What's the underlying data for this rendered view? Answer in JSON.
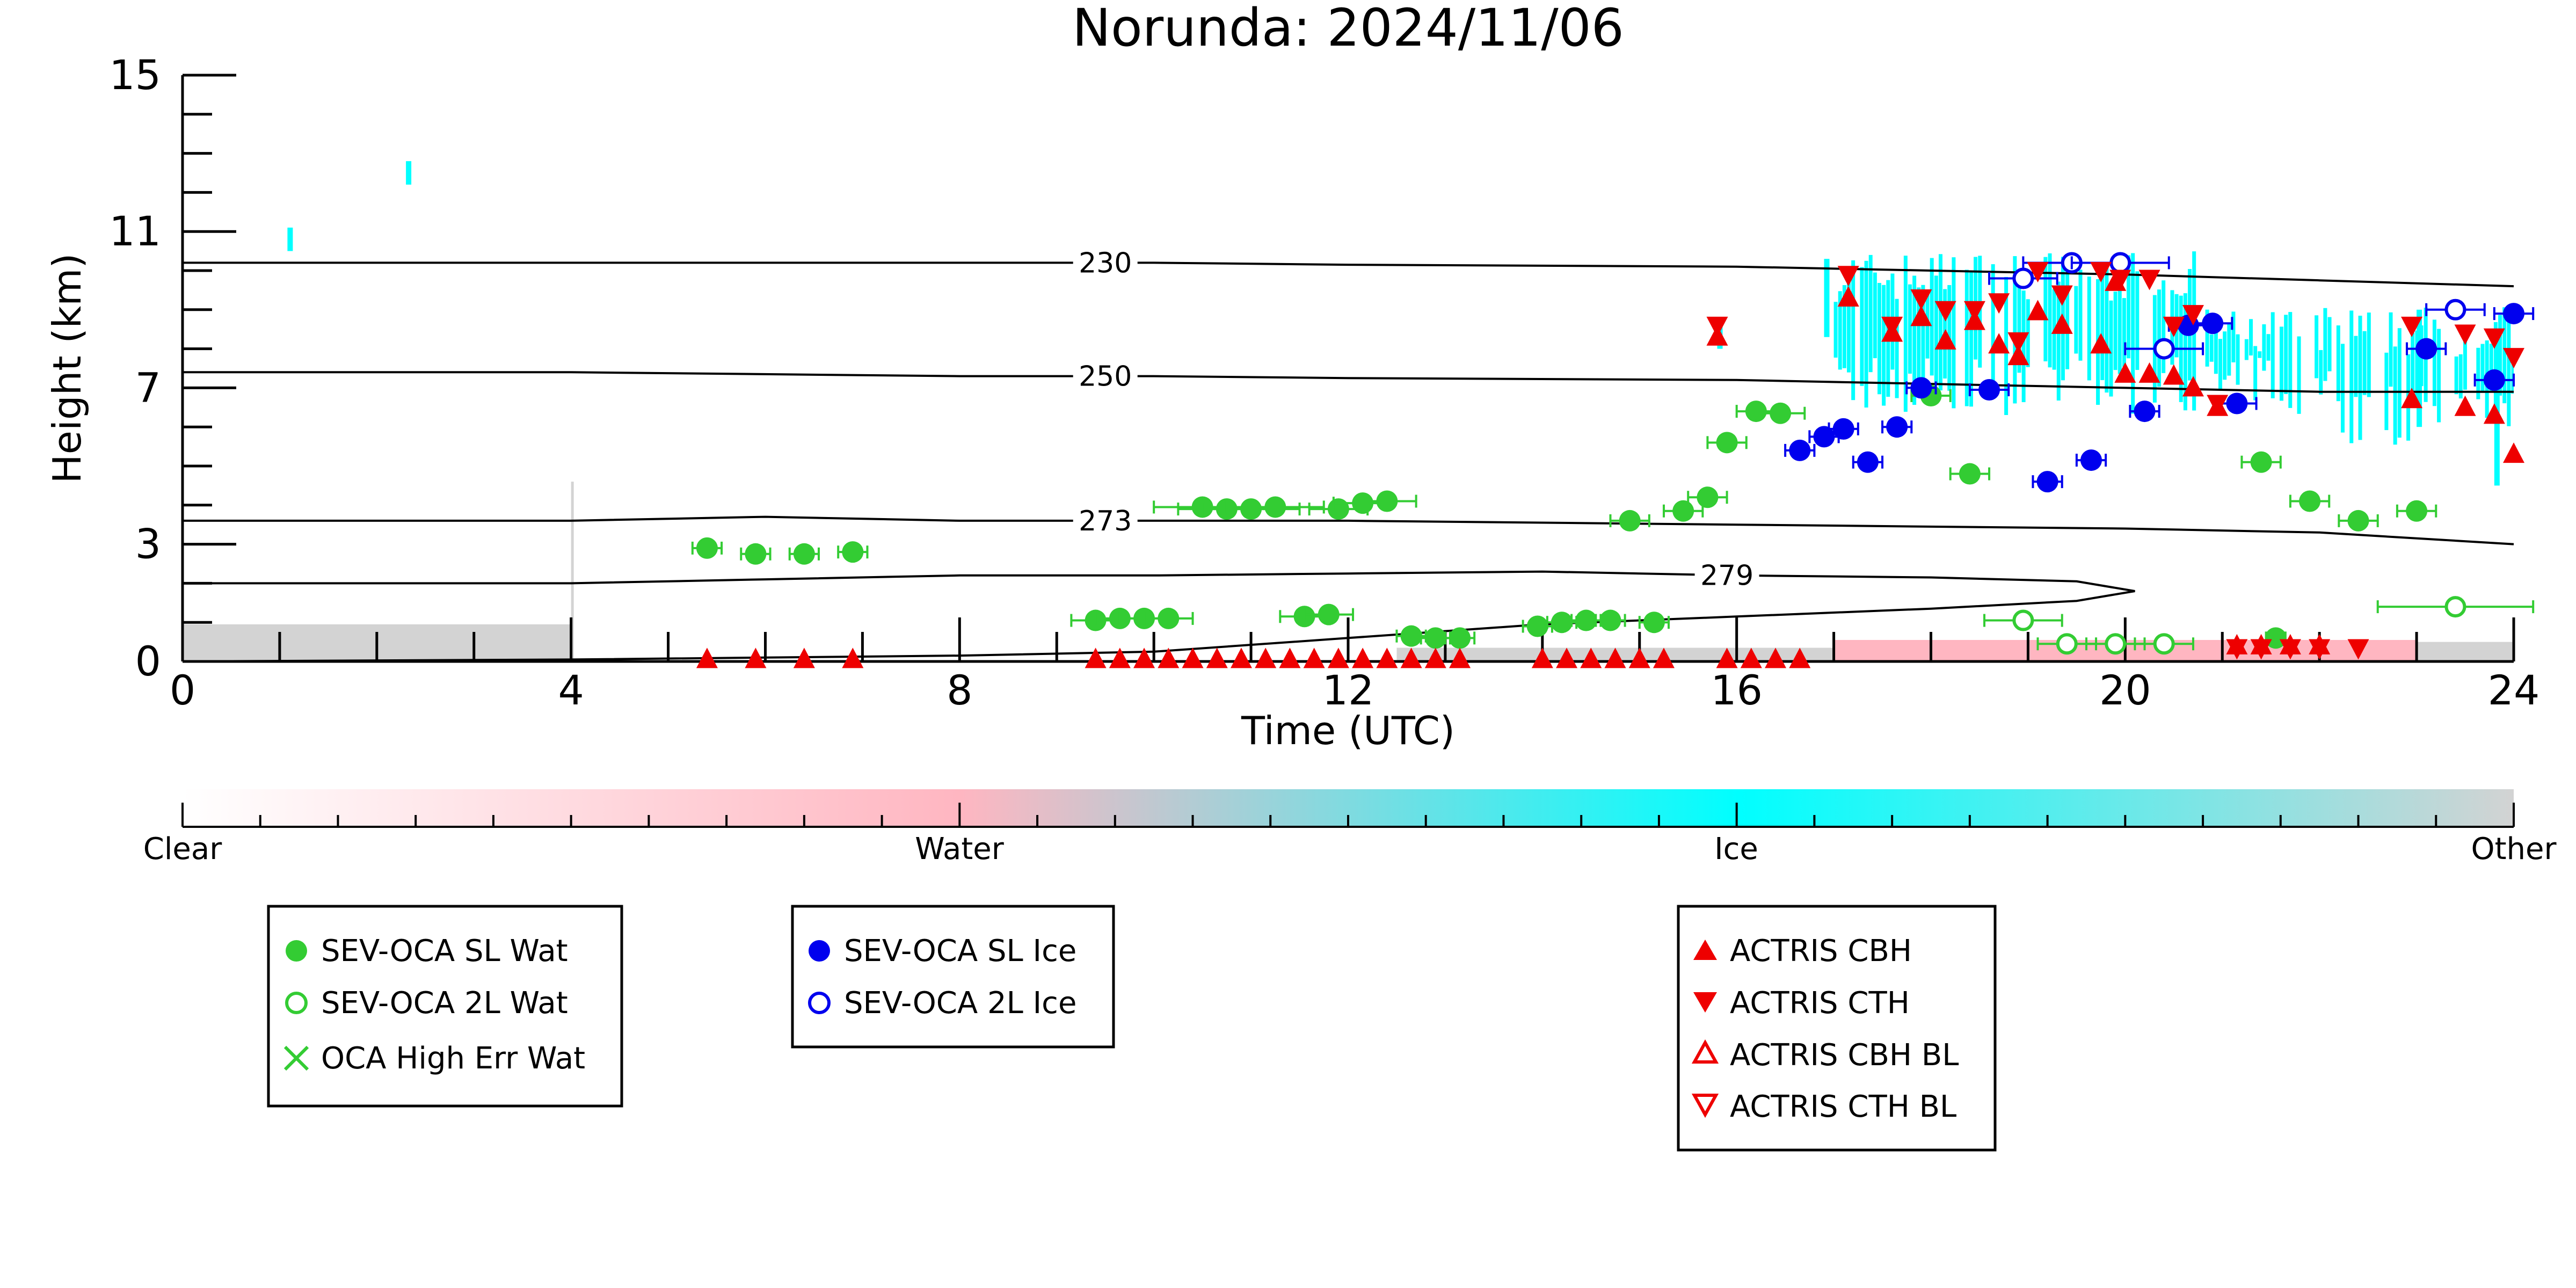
{
  "chart_data": {
    "type": "scatter",
    "title": "Norunda: 2024/11/06",
    "xlabel": "Time (UTC)",
    "ylabel": "Height (km)",
    "xlim": [
      0,
      24
    ],
    "ylim": [
      0,
      15
    ],
    "x_ticks": [
      "0",
      "4",
      "8",
      "12",
      "16",
      "20",
      "24"
    ],
    "y_ticks": [
      "0",
      "3",
      "7",
      "11",
      "15"
    ],
    "colorbar": {
      "labels": [
        "Clear",
        "Water",
        "Ice",
        "Other"
      ],
      "colors": {
        "clear": "#ffffff",
        "water": "#ffb6c1",
        "ice": "#00ffff",
        "other": "#d3d3d3"
      }
    },
    "temperature_contours": [
      {
        "label": "230",
        "label_x": 9.5,
        "points": [
          [
            0,
            10.2
          ],
          [
            4,
            10.2
          ],
          [
            8,
            10.2
          ],
          [
            10,
            10.2
          ],
          [
            12,
            10.15
          ],
          [
            16,
            10.1
          ],
          [
            18,
            10.0
          ],
          [
            20,
            9.9
          ],
          [
            22,
            9.75
          ],
          [
            24,
            9.6
          ]
        ]
      },
      {
        "label": "250",
        "label_x": 9.5,
        "points": [
          [
            0,
            7.4
          ],
          [
            4,
            7.4
          ],
          [
            8,
            7.3
          ],
          [
            10,
            7.3
          ],
          [
            12,
            7.25
          ],
          [
            16,
            7.2
          ],
          [
            20,
            7.0
          ],
          [
            22,
            6.9
          ],
          [
            24,
            6.9
          ]
        ]
      },
      {
        "label": "273",
        "label_x": 9.5,
        "points": [
          [
            0,
            3.6
          ],
          [
            3,
            3.6
          ],
          [
            4,
            3.6
          ],
          [
            6,
            3.7
          ],
          [
            8,
            3.6
          ],
          [
            10,
            3.6
          ],
          [
            12,
            3.6
          ],
          [
            16,
            3.5
          ],
          [
            20,
            3.4
          ],
          [
            22,
            3.3
          ],
          [
            24,
            3.0
          ]
        ]
      },
      {
        "label": "279",
        "label_x": 15.9,
        "points": [
          [
            0,
            2.0
          ],
          [
            2,
            2.0
          ],
          [
            4,
            2.0
          ],
          [
            6,
            2.1
          ],
          [
            8,
            2.2
          ],
          [
            10,
            2.2
          ],
          [
            12,
            2.25
          ],
          [
            14,
            2.3
          ],
          [
            16,
            2.2
          ],
          [
            18,
            2.15
          ],
          [
            19.5,
            2.05
          ],
          [
            20.1,
            1.8
          ],
          [
            19.5,
            1.55
          ],
          [
            18,
            1.35
          ],
          [
            16,
            1.15
          ],
          [
            14,
            0.95
          ],
          [
            12,
            0.6
          ],
          [
            10,
            0.25
          ],
          [
            8,
            0.15
          ],
          [
            4,
            0.05
          ],
          [
            0,
            0.0
          ]
        ]
      }
    ],
    "series": [
      {
        "name": "SEV-OCA SL Wat",
        "color": "#33cc33",
        "marker": "filled-circle",
        "points": [
          [
            5.4,
            2.9,
            0.15
          ],
          [
            5.9,
            2.75,
            0.15
          ],
          [
            6.4,
            2.75,
            0.15
          ],
          [
            6.9,
            2.8,
            0.15
          ],
          [
            9.4,
            1.05,
            0.25
          ],
          [
            9.65,
            1.1,
            0.25
          ],
          [
            9.9,
            1.1,
            0.25
          ],
          [
            10.15,
            1.1,
            0.25
          ],
          [
            10.5,
            3.95,
            0.5
          ],
          [
            10.75,
            3.9,
            0.5
          ],
          [
            11.0,
            3.9,
            0.5
          ],
          [
            11.25,
            3.95,
            0.5
          ],
          [
            11.55,
            1.15,
            0.25
          ],
          [
            11.8,
            1.2,
            0.25
          ],
          [
            11.9,
            3.9,
            0.3
          ],
          [
            12.15,
            4.05,
            0.3
          ],
          [
            12.4,
            4.1,
            0.3
          ],
          [
            12.65,
            0.65,
            0.15
          ],
          [
            12.9,
            0.6,
            0.15
          ],
          [
            13.15,
            0.6,
            0.15
          ],
          [
            13.95,
            0.9,
            0.15
          ],
          [
            14.2,
            1.0,
            0.15
          ],
          [
            14.45,
            1.05,
            0.15
          ],
          [
            14.7,
            1.05,
            0.15
          ],
          [
            15.15,
            1.0,
            0.15
          ],
          [
            14.9,
            3.6,
            0.2
          ],
          [
            15.45,
            3.85,
            0.2
          ],
          [
            15.7,
            4.2,
            0.2
          ],
          [
            15.9,
            5.6,
            0.2
          ],
          [
            16.2,
            6.4,
            0.2
          ],
          [
            16.45,
            6.35,
            0.25
          ],
          [
            18.0,
            6.8,
            0.2
          ],
          [
            18.4,
            4.8,
            0.2
          ],
          [
            21.4,
            5.1,
            0.2
          ],
          [
            21.55,
            0.6,
            0.1
          ],
          [
            21.9,
            4.1,
            0.2
          ],
          [
            22.4,
            3.6,
            0.2
          ],
          [
            23.0,
            3.85,
            0.2
          ]
        ]
      },
      {
        "name": "SEV-OCA 2L Wat",
        "color": "#33cc33",
        "marker": "open-circle",
        "points": [
          [
            18.95,
            1.05,
            0.4
          ],
          [
            19.4,
            0.45,
            0.3
          ],
          [
            19.9,
            0.45,
            0.3
          ],
          [
            20.4,
            0.45,
            0.3
          ],
          [
            23.4,
            1.4,
            0.8
          ]
        ]
      },
      {
        "name": "OCA High Err Wat",
        "color": "#33cc33",
        "marker": "x",
        "points": []
      },
      {
        "name": "SEV-OCA SL Ice",
        "color": "#0000ee",
        "marker": "filled-circle",
        "points": [
          [
            16.65,
            5.4,
            0.15
          ],
          [
            16.9,
            5.75,
            0.15
          ],
          [
            17.1,
            5.95,
            0.15
          ],
          [
            17.35,
            5.1,
            0.15
          ],
          [
            17.65,
            6.0,
            0.15
          ],
          [
            17.9,
            7.0,
            0.15
          ],
          [
            18.6,
            6.95,
            0.2
          ],
          [
            19.2,
            4.6,
            0.15
          ],
          [
            19.65,
            5.15,
            0.15
          ],
          [
            20.2,
            6.4,
            0.15
          ],
          [
            20.65,
            8.6,
            0.2
          ],
          [
            20.9,
            8.65,
            0.2
          ],
          [
            21.15,
            6.6,
            0.2
          ],
          [
            23.1,
            8.0,
            0.2
          ],
          [
            23.8,
            7.2,
            0.2
          ],
          [
            24.0,
            8.9,
            0.2
          ]
        ]
      },
      {
        "name": "SEV-OCA 2L Ice",
        "color": "#0000ee",
        "marker": "open-circle",
        "points": [
          [
            18.95,
            9.8,
            0.35
          ],
          [
            19.45,
            10.2,
            0.5
          ],
          [
            19.95,
            10.2,
            0.5
          ],
          [
            20.4,
            8.0,
            0.4
          ],
          [
            23.4,
            9.0,
            0.3
          ]
        ]
      },
      {
        "name": "ACTRIS CBH",
        "color": "#ee0000",
        "marker": "filled-triangle-up",
        "points": [
          [
            15.8,
            8.3
          ],
          [
            17.15,
            9.3
          ],
          [
            17.6,
            8.4
          ],
          [
            17.9,
            8.8
          ],
          [
            18.15,
            8.2
          ],
          [
            18.45,
            8.7
          ],
          [
            18.7,
            8.1
          ],
          [
            18.9,
            7.8
          ],
          [
            19.1,
            8.95
          ],
          [
            19.35,
            8.6
          ],
          [
            19.75,
            8.1
          ],
          [
            19.9,
            9.7
          ],
          [
            20.0,
            7.35
          ],
          [
            20.25,
            7.35
          ],
          [
            20.5,
            7.3
          ],
          [
            20.7,
            7.0
          ],
          [
            20.95,
            6.5
          ],
          [
            22.95,
            6.7
          ],
          [
            23.5,
            6.5
          ],
          [
            23.8,
            6.3
          ],
          [
            24.0,
            5.3
          ],
          [
            21.15,
            0.4
          ],
          [
            21.4,
            0.4
          ],
          [
            21.7,
            0.4
          ],
          [
            22.0,
            0.4
          ],
          [
            5.4,
            0.05
          ],
          [
            5.9,
            0.05
          ],
          [
            6.4,
            0.05
          ],
          [
            6.9,
            0.05
          ],
          [
            9.4,
            0.05
          ],
          [
            9.65,
            0.05
          ],
          [
            9.9,
            0.05
          ],
          [
            10.15,
            0.05
          ],
          [
            10.4,
            0.05
          ],
          [
            10.65,
            0.05
          ],
          [
            10.9,
            0.05
          ],
          [
            11.15,
            0.05
          ],
          [
            11.4,
            0.05
          ],
          [
            11.65,
            0.05
          ],
          [
            11.9,
            0.05
          ],
          [
            12.15,
            0.05
          ],
          [
            12.4,
            0.05
          ],
          [
            12.65,
            0.05
          ],
          [
            12.9,
            0.05
          ],
          [
            13.15,
            0.05
          ],
          [
            14.0,
            0.05
          ],
          [
            14.25,
            0.05
          ],
          [
            14.5,
            0.05
          ],
          [
            14.75,
            0.05
          ],
          [
            15.0,
            0.05
          ],
          [
            15.25,
            0.05
          ],
          [
            15.9,
            0.05
          ],
          [
            16.15,
            0.05
          ],
          [
            16.4,
            0.05
          ],
          [
            16.65,
            0.05
          ]
        ]
      },
      {
        "name": "ACTRIS CTH",
        "color": "#ee0000",
        "marker": "filled-triangle-down",
        "points": [
          [
            15.8,
            8.6
          ],
          [
            17.15,
            9.9
          ],
          [
            17.6,
            8.6
          ],
          [
            17.9,
            9.3
          ],
          [
            18.15,
            9.0
          ],
          [
            18.45,
            9.0
          ],
          [
            18.7,
            9.2
          ],
          [
            18.9,
            8.2
          ],
          [
            19.1,
            10.0
          ],
          [
            19.35,
            9.4
          ],
          [
            19.75,
            10.0
          ],
          [
            19.95,
            9.8
          ],
          [
            20.25,
            9.8
          ],
          [
            20.5,
            8.6
          ],
          [
            20.7,
            8.9
          ],
          [
            20.95,
            6.6
          ],
          [
            22.95,
            8.6
          ],
          [
            23.5,
            8.4
          ],
          [
            23.8,
            8.3
          ],
          [
            24.0,
            7.8
          ],
          [
            21.15,
            0.35
          ],
          [
            21.4,
            0.35
          ],
          [
            21.7,
            0.35
          ],
          [
            22.0,
            0.35
          ],
          [
            22.4,
            0.35
          ]
        ]
      },
      {
        "name": "ACTRIS CBH BL",
        "color": "#ee0000",
        "marker": "open-triangle-up",
        "points": []
      },
      {
        "name": "ACTRIS CTH BL",
        "color": "#ee0000",
        "marker": "open-triangle-down",
        "points": []
      }
    ],
    "legend_placement": "below plot, three boxes"
  }
}
